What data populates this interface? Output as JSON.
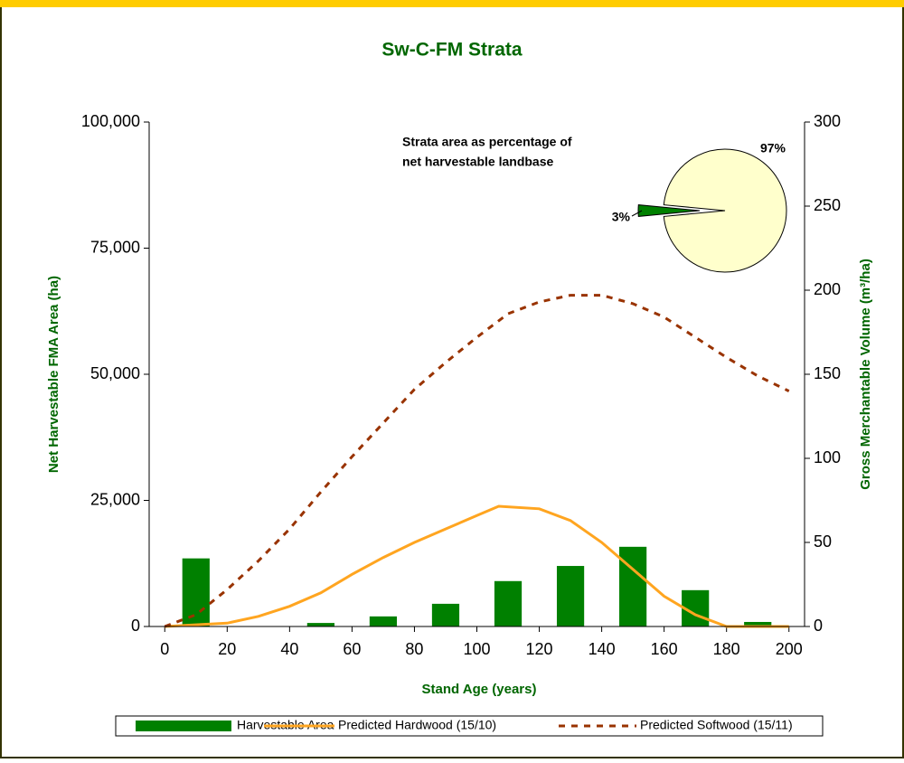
{
  "chart_data": [
    {
      "type": "bar",
      "title": "Sw-C-FM Strata",
      "xlabel": "Stand Age (years)",
      "ylabel": "Net Harvestable FMA Area (ha)",
      "y2label": "Gross Merchantable Volume (m³/ha)",
      "xlim": [
        -5,
        205
      ],
      "xticks": [
        0,
        20,
        40,
        60,
        80,
        100,
        120,
        140,
        160,
        180,
        200
      ],
      "ylim": [
        0,
        100000
      ],
      "yticks": [
        0,
        {
          "value": 25000,
          "label": "25,000"
        },
        {
          "value": 50000,
          "label": "50,000"
        },
        {
          "value": 75000,
          "label": "75,000"
        },
        {
          "value": 100000,
          "label": "100,000"
        }
      ],
      "y2lim": [
        0,
        300
      ],
      "y2ticks": [
        0,
        50,
        100,
        150,
        200,
        250,
        300
      ],
      "series": [
        {
          "name": "Harvestable Area",
          "type": "bar",
          "color": "#008000",
          "x": [
            10,
            50,
            70,
            90,
            110,
            130,
            150,
            170,
            190
          ],
          "values": [
            13500,
            700,
            2000,
            4500,
            9000,
            12000,
            15800,
            7200,
            900
          ]
        },
        {
          "name": "Predicted Hardwood (15/10)",
          "type": "line",
          "color": "#ffa520",
          "axis": "y2",
          "x": [
            0,
            10,
            20,
            30,
            40,
            50,
            60,
            70,
            80,
            90,
            100,
            107,
            120,
            130,
            140,
            150,
            160,
            170,
            180,
            190,
            200
          ],
          "values": [
            0,
            1,
            2,
            6,
            12,
            20,
            31,
            41,
            50,
            58,
            66,
            71.5,
            70,
            63,
            50,
            34,
            18,
            7,
            0,
            0,
            0
          ]
        },
        {
          "name": "Predicted Softwood (15/11)",
          "type": "line",
          "dashed": true,
          "color": "#993300",
          "axis": "y2",
          "x": [
            0,
            10,
            20,
            30,
            40,
            50,
            60,
            70,
            80,
            90,
            100,
            110,
            120,
            130,
            140,
            150,
            160,
            170,
            180,
            190,
            200
          ],
          "values": [
            0,
            7,
            22,
            39,
            58,
            80,
            101,
            121,
            141,
            157,
            172,
            186,
            193,
            197,
            197,
            192,
            184,
            172,
            160,
            149,
            140
          ]
        }
      ]
    },
    {
      "type": "pie",
      "title_lines": [
        "Strata area as percentage of",
        "net harvestable landbase"
      ],
      "values": [
        97,
        3
      ],
      "value_labels": [
        "97%",
        "3%"
      ],
      "colors": [
        "#ffffcc",
        "#008000"
      ]
    }
  ]
}
